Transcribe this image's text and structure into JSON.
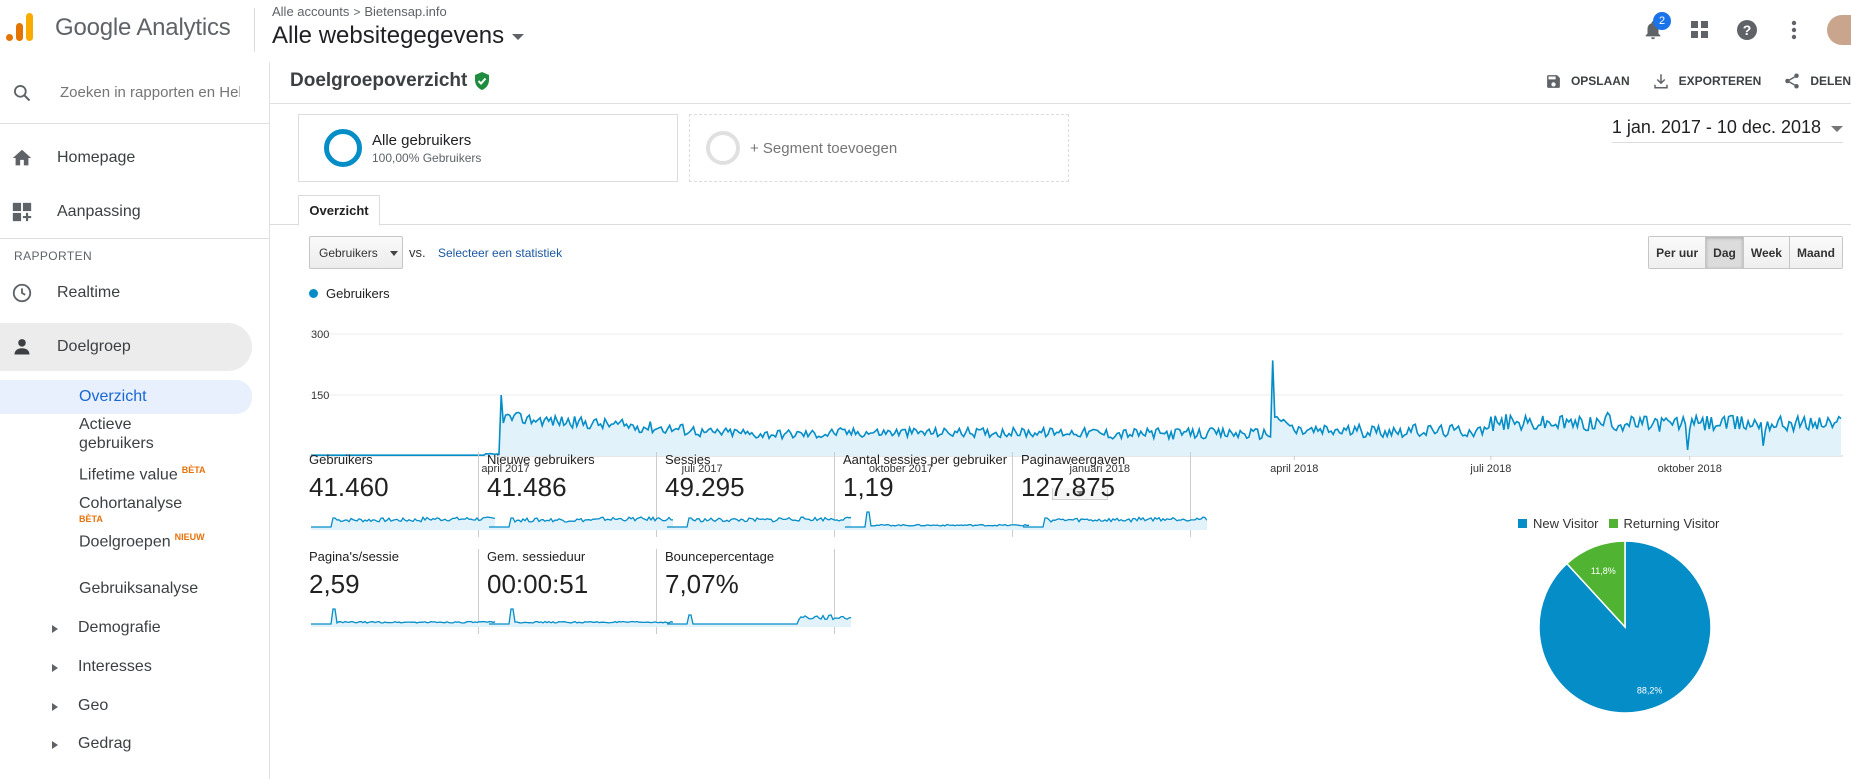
{
  "app": {
    "name": "Google Analytics"
  },
  "breadcrumb": {
    "accounts": "Alle accounts",
    "separator": ">",
    "site": "Bietensap.info"
  },
  "property": {
    "name": "Alle websitegegevens"
  },
  "notifications": {
    "count": "2"
  },
  "icons": {
    "search": "search-icon",
    "home": "home-icon",
    "customize": "dashboard-add-icon",
    "realtime": "clock-icon",
    "audience": "person-icon",
    "bell": "bell-icon",
    "apps": "apps-grid-icon",
    "help": "help-icon",
    "more": "more-vert-icon",
    "save": "save-icon",
    "export": "download-icon",
    "share": "share-icon",
    "verified": "shield-check-icon"
  },
  "sidebar": {
    "search_placeholder": "Zoeken in rapporten en Help",
    "home": "Homepage",
    "customize": "Aanpassing",
    "section": "RAPPORTEN",
    "realtime": "Realtime",
    "audience": "Doelgroep",
    "audience_items": [
      {
        "label": "Overzicht"
      },
      {
        "label": "Actieve",
        "label2": "gebruikers"
      },
      {
        "label": "Lifetime value",
        "badge": "BÈTA"
      },
      {
        "label": "Cohortanalyse",
        "badge": "BÈTA"
      },
      {
        "label": "Doelgroepen",
        "badge": "NIEUW"
      },
      {
        "label": "Gebruiksanalyse"
      }
    ],
    "groups": [
      "Demografie",
      "Interesses",
      "Geo",
      "Gedrag"
    ]
  },
  "header": {
    "title": "Doelgroepoverzicht",
    "actions": {
      "save": "OPSLAAN",
      "export": "EXPORTEREN",
      "share": "DELEN"
    }
  },
  "segments": {
    "primary_name": "Alle gebruikers",
    "primary_sub": "100,00% Gebruikers",
    "add": "+ Segment toevoegen"
  },
  "date_range": "1 jan. 2017 - 10 dec. 2018",
  "tabs": {
    "overview": "Overzicht"
  },
  "controls": {
    "metric": "Gebruikers",
    "vs": "vs.",
    "compare": "Selecteer een statistiek",
    "periods": [
      "Per uur",
      "Dag",
      "Week",
      "Maand"
    ],
    "active_period": "Dag"
  },
  "colors": {
    "primary": "#058dc7",
    "returning": "#50b432",
    "fill": "#e1f2fa"
  },
  "chart_data": [
    {
      "type": "line",
      "series": [
        {
          "name": "Gebruikers"
        }
      ],
      "y_ticks": [
        "300",
        "150"
      ],
      "ylim": [
        0,
        300
      ],
      "x_tick_labels": [
        "april 2017",
        "juli 2017",
        "oktober 2017",
        "januari 2018",
        "april 2018",
        "juli 2018",
        "oktober 2018"
      ],
      "x_range": [
        "2017-01-01",
        "2018-12-10"
      ],
      "daily_values": {
        "2017-01-01 to 2017-03-29": 2,
        "2017-03-30": 150,
        "apr-jun 2017": 90,
        "jul 2017 - dec 2017": 60,
        "jan 2018 - mar 2018": 55,
        "2018-03-22": 235,
        "apr 2018 - dec 2018": 75,
        "2018-09-30 (drop)": 20
      },
      "area_fill": true,
      "grid": true
    },
    {
      "type": "pie",
      "series": [
        {
          "name": "New Visitor",
          "value": 88.2,
          "label": "88,2%"
        },
        {
          "name": "Returning Visitor",
          "value": 11.8,
          "label": "11,8%"
        }
      ],
      "legend": "top"
    }
  ],
  "scorecards": [
    {
      "title": "Gebruikers",
      "value": "41.460"
    },
    {
      "title": "Nieuwe gebruikers",
      "value": "41.486"
    },
    {
      "title": "Sessies",
      "value": "49.295"
    },
    {
      "title": "Aantal sessies per gebruiker",
      "value": "1,19"
    },
    {
      "title": "Paginaweergaven",
      "value": "127.875"
    },
    {
      "title": "Pagina's/sessie",
      "value": "2,59"
    },
    {
      "title": "Gem. sessieduur",
      "value": "00:00:51"
    },
    {
      "title": "Bouncepercentage",
      "value": "7,07%"
    }
  ]
}
